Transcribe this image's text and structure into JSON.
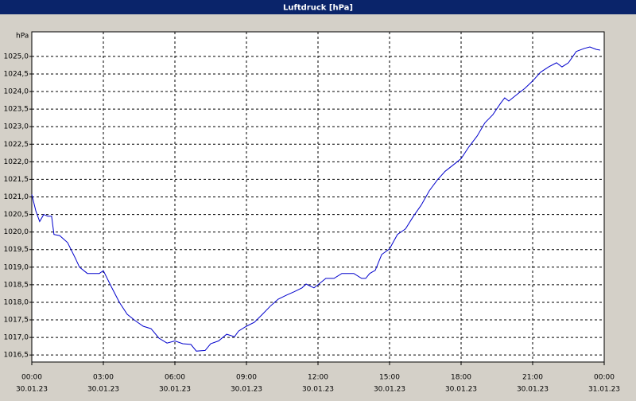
{
  "chart_data": {
    "type": "line",
    "title": "Luftdruck [hPa]",
    "y_label": "hPa",
    "x": [
      0,
      0.17,
      0.33,
      0.5,
      0.67,
      0.83,
      0.93,
      1.17,
      1.5,
      1.83,
      2.0,
      2.33,
      2.83,
      3.0,
      3.33,
      3.67,
      4.0,
      4.33,
      4.67,
      5.0,
      5.33,
      5.67,
      6.0,
      6.33,
      6.67,
      6.9,
      7.27,
      7.5,
      7.83,
      8.17,
      8.5,
      8.67,
      9.0,
      9.33,
      9.67,
      10.0,
      10.33,
      10.67,
      11.0,
      11.33,
      11.5,
      11.83,
      12.0,
      12.33,
      12.67,
      13.0,
      13.5,
      13.83,
      14.0,
      14.17,
      14.4,
      14.67,
      15.0,
      15.33,
      15.67,
      16.0,
      16.33,
      16.67,
      17.0,
      17.33,
      17.67,
      18.0,
      18.33,
      18.67,
      19.0,
      19.33,
      19.67,
      19.83,
      20.0,
      20.33,
      20.67,
      21.0,
      21.33,
      21.67,
      22.0,
      22.23,
      22.5,
      22.83,
      23.17,
      23.4,
      23.67,
      23.83
    ],
    "series": [
      {
        "name": "Luftdruck",
        "color": "#0000cc",
        "values": [
          1021.07,
          1020.6,
          1020.3,
          1020.5,
          1020.45,
          1020.45,
          1019.93,
          1019.9,
          1019.7,
          1019.25,
          1019.0,
          1018.82,
          1018.82,
          1018.9,
          1018.45,
          1018.0,
          1017.66,
          1017.48,
          1017.32,
          1017.25,
          1016.98,
          1016.84,
          1016.9,
          1016.82,
          1016.8,
          1016.61,
          1016.63,
          1016.82,
          1016.9,
          1017.09,
          1017.02,
          1017.18,
          1017.32,
          1017.43,
          1017.66,
          1017.89,
          1018.09,
          1018.2,
          1018.3,
          1018.41,
          1018.52,
          1018.41,
          1018.5,
          1018.68,
          1018.68,
          1018.82,
          1018.82,
          1018.68,
          1018.68,
          1018.82,
          1018.91,
          1019.36,
          1019.52,
          1019.93,
          1020.09,
          1020.45,
          1020.77,
          1021.18,
          1021.48,
          1021.73,
          1021.91,
          1022.09,
          1022.43,
          1022.73,
          1023.11,
          1023.34,
          1023.68,
          1023.82,
          1023.73,
          1023.91,
          1024.09,
          1024.3,
          1024.55,
          1024.7,
          1024.82,
          1024.7,
          1024.82,
          1025.14,
          1025.23,
          1025.27,
          1025.2,
          1025.18
        ]
      }
    ],
    "xlim": [
      0,
      24
    ],
    "xticks": [
      {
        "value": 0,
        "label": "00:00"
      },
      {
        "value": 3,
        "label": "03:00"
      },
      {
        "value": 6,
        "label": "06:00"
      },
      {
        "value": 9,
        "label": "09:00"
      },
      {
        "value": 12,
        "label": "12:00"
      },
      {
        "value": 15,
        "label": "15:00"
      },
      {
        "value": 18,
        "label": "18:00"
      },
      {
        "value": 21,
        "label": "21:00"
      },
      {
        "value": 24,
        "label": "00:00"
      }
    ],
    "xtick_dates": [
      "30.01.23",
      "30.01.23",
      "30.01.23",
      "30.01.23",
      "30.01.23",
      "30.01.23",
      "30.01.23",
      "30.01.23",
      "31.01.23"
    ],
    "ylim": [
      1016.3,
      1025.7
    ],
    "yticks": [
      {
        "value": 1016.5,
        "label": "1016,5"
      },
      {
        "value": 1017,
        "label": "1017,0"
      },
      {
        "value": 1017.5,
        "label": "1017,5"
      },
      {
        "value": 1018,
        "label": "1018,0"
      },
      {
        "value": 1018.5,
        "label": "1018,5"
      },
      {
        "value": 1019,
        "label": "1019,0"
      },
      {
        "value": 1019.5,
        "label": "1019,5"
      },
      {
        "value": 1020,
        "label": "1020,0"
      },
      {
        "value": 1020.5,
        "label": "1020,5"
      },
      {
        "value": 1021,
        "label": "1021,0"
      },
      {
        "value": 1021.5,
        "label": "1021,5"
      },
      {
        "value": 1022,
        "label": "1022,0"
      },
      {
        "value": 1022.5,
        "label": "1022,5"
      },
      {
        "value": 1023,
        "label": "1023,0"
      },
      {
        "value": 1023.5,
        "label": "1023,5"
      },
      {
        "value": 1024,
        "label": "1024,0"
      },
      {
        "value": 1024.5,
        "label": "1024,5"
      },
      {
        "value": 1025,
        "label": "1025,0"
      }
    ],
    "grid": true
  }
}
